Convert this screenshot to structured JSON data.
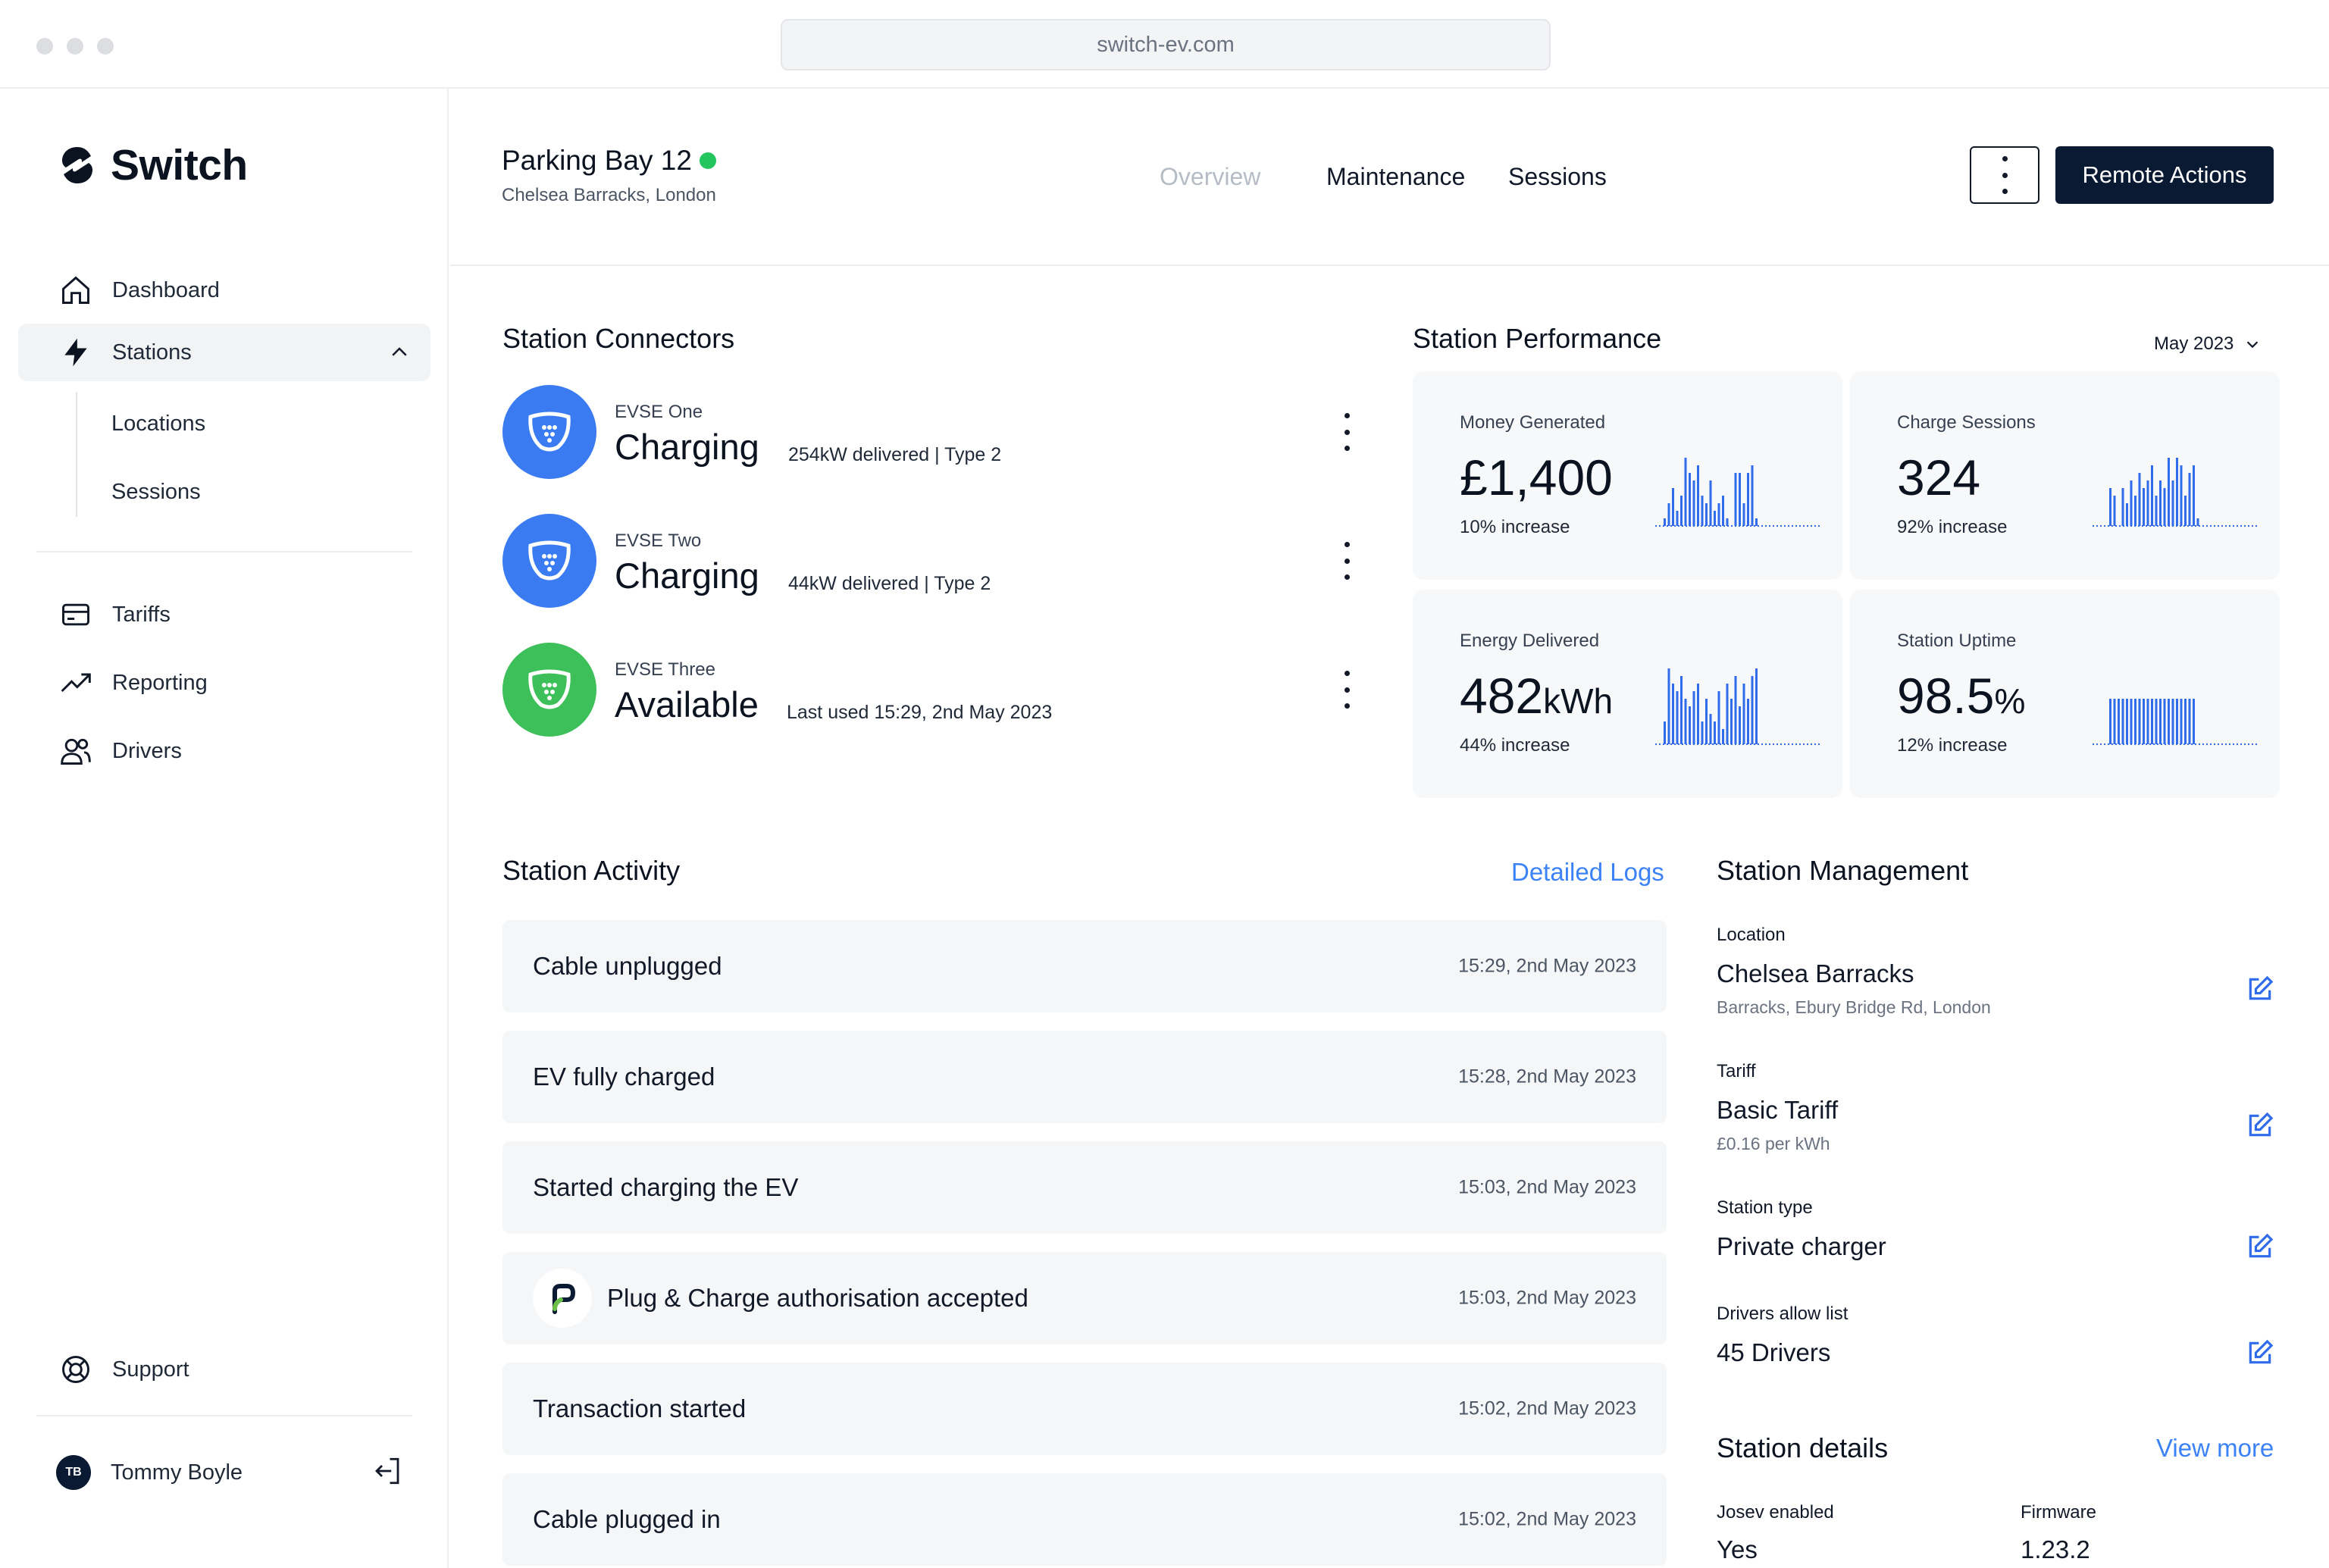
{
  "browser": {
    "url": "switch-ev.com"
  },
  "brand": {
    "name": "Switch"
  },
  "sidebar": {
    "items": [
      {
        "label": "Dashboard",
        "icon": "home-icon"
      },
      {
        "label": "Stations",
        "icon": "lightning-icon"
      },
      {
        "label": "Tariffs",
        "icon": "card-icon"
      },
      {
        "label": "Reporting",
        "icon": "trend-icon"
      },
      {
        "label": "Drivers",
        "icon": "users-icon"
      }
    ],
    "stations_sub": [
      "Locations",
      "Sessions"
    ],
    "support": "Support",
    "user": {
      "initials": "TB",
      "name": "Tommy Boyle"
    }
  },
  "header": {
    "title": "Parking Bay 12",
    "subtitle": "Chelsea Barracks, London",
    "tabs": [
      "Overview",
      "Maintenance",
      "Sessions"
    ],
    "remote_actions": "Remote Actions"
  },
  "connectors": {
    "title": "Station Connectors",
    "items": [
      {
        "name": "EVSE One",
        "state": "Charging",
        "meta": "254kW delivered | Type 2",
        "color": "#3b7bf2"
      },
      {
        "name": "EVSE Two",
        "state": "Charging",
        "meta": "44kW delivered | Type 2",
        "color": "#3b7bf2"
      },
      {
        "name": "EVSE Three",
        "state": "Available",
        "meta": "Last used 15:29, 2nd May 2023",
        "color": "#3dbf5a"
      }
    ]
  },
  "performance": {
    "title": "Station Performance",
    "period": "May 2023",
    "cards": [
      {
        "label": "Money Generated",
        "value": "£1,400",
        "unit": "",
        "increase": "10% increase"
      },
      {
        "label": "Charge Sessions",
        "value": "324",
        "unit": "",
        "increase": "92% increase"
      },
      {
        "label": "Energy Delivered",
        "value": "482",
        "unit": "kWh",
        "increase": "44% increase"
      },
      {
        "label": "Station Uptime",
        "value": "98.5",
        "unit": "%",
        "increase": "12% increase"
      }
    ],
    "accent": "#2f6bea"
  },
  "activity": {
    "title": "Station Activity",
    "link": "Detailed Logs",
    "rows": [
      {
        "text": "Cable unplugged",
        "time": "15:29, 2nd May 2023"
      },
      {
        "text": "EV fully charged",
        "time": "15:28, 2nd May 2023"
      },
      {
        "text": "Started charging the EV",
        "time": "15:03, 2nd May 2023"
      },
      {
        "text": "Plug & Charge authorisation accepted",
        "time": "15:03, 2nd May 2023"
      },
      {
        "text": "Transaction started",
        "time": "15:02, 2nd May 2023"
      },
      {
        "text": "Cable plugged in",
        "time": "15:02, 2nd May 2023"
      }
    ]
  },
  "management": {
    "title": "Station Management",
    "location": {
      "label": "Location",
      "value": "Chelsea Barracks",
      "sub": "Barracks, Ebury Bridge Rd, London"
    },
    "tariff": {
      "label": "Tariff",
      "value": "Basic Tariff",
      "sub": "£0.16 per kWh"
    },
    "station_type": {
      "label": "Station type",
      "value": "Private charger"
    },
    "drivers": {
      "label": "Drivers allow list",
      "value": "45 Drivers"
    }
  },
  "details": {
    "title": "Station details",
    "link": "View more",
    "josev_label": "Josev enabled",
    "josev_value": "Yes",
    "firmware_label": "Firmware",
    "firmware_value": "1.23.2"
  }
}
